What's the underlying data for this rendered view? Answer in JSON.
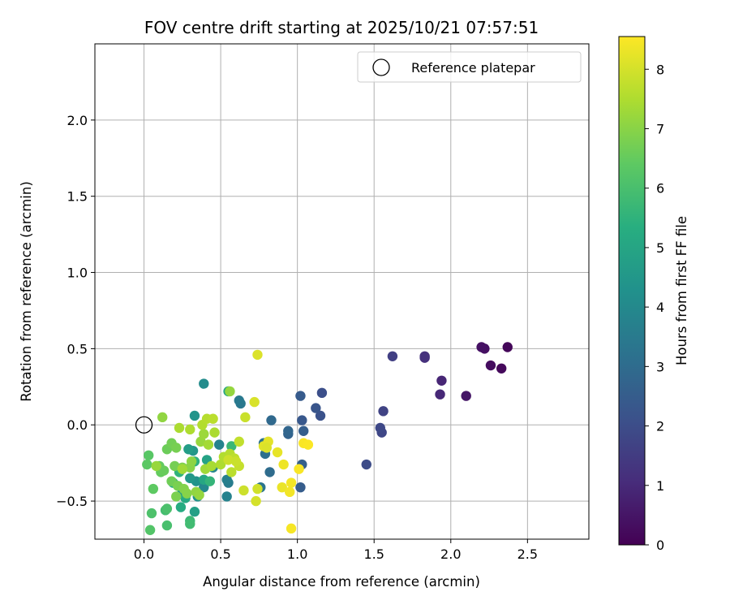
{
  "chart_data": {
    "type": "scatter",
    "title": "FOV centre drift starting at 2025/10/21 07:57:51",
    "xlabel": "Angular distance from reference (arcmin)",
    "ylabel": "Rotation from reference (arcmin)",
    "colorbar_label": "Hours from first FF file",
    "xlim": [
      -0.32,
      2.9
    ],
    "ylim": [
      -0.75,
      2.5
    ],
    "clim": [
      0,
      8.55
    ],
    "x_ticks": [
      0.0,
      0.5,
      1.0,
      1.5,
      2.0,
      2.5
    ],
    "x_tick_labels": [
      "0.0",
      "0.5",
      "1.0",
      "1.5",
      "2.0",
      "2.5"
    ],
    "y_ticks": [
      -0.5,
      0.0,
      0.5,
      1.0,
      1.5,
      2.0
    ],
    "y_tick_labels": [
      "−0.5",
      "0.0",
      "0.5",
      "1.0",
      "1.5",
      "2.0"
    ],
    "colorbar_ticks": [
      0,
      1,
      2,
      3,
      4,
      5,
      6,
      7,
      8
    ],
    "colorbar_tick_labels": [
      "0",
      "1",
      "2",
      "3",
      "4",
      "5",
      "6",
      "7",
      "8"
    ],
    "colormap": "viridis",
    "grid": true,
    "legend": {
      "placement": "top-right",
      "entries": [
        {
          "label": "Reference platepar",
          "marker": "open-circle",
          "color": "#000000"
        }
      ]
    },
    "reference_point": {
      "x": 0.0,
      "y": 0.0
    },
    "series": [
      {
        "points": [
          [
            2.37,
            0.51,
            0.15
          ],
          [
            2.33,
            0.37,
            0.2
          ],
          [
            2.26,
            0.39,
            0.3
          ],
          [
            2.22,
            0.5,
            0.35
          ],
          [
            2.2,
            0.51,
            0.4
          ],
          [
            2.1,
            0.19,
            0.5
          ],
          [
            1.94,
            0.29,
            0.9
          ],
          [
            1.93,
            0.2,
            0.95
          ],
          [
            1.83,
            0.44,
            1.15
          ],
          [
            1.83,
            0.45,
            1.2
          ],
          [
            1.62,
            0.45,
            1.6
          ],
          [
            1.56,
            0.09,
            1.7
          ],
          [
            1.55,
            -0.05,
            1.8
          ],
          [
            1.54,
            -0.02,
            1.85
          ],
          [
            1.45,
            -0.26,
            1.95
          ],
          [
            1.16,
            0.21,
            2.05
          ],
          [
            1.15,
            0.06,
            2.15
          ],
          [
            1.12,
            0.11,
            2.25
          ],
          [
            1.03,
            0.03,
            2.35
          ],
          [
            1.02,
            0.19,
            2.45
          ],
          [
            1.02,
            -0.41,
            2.5
          ],
          [
            1.03,
            -0.26,
            2.6
          ],
          [
            1.04,
            -0.04,
            2.55
          ],
          [
            0.94,
            -0.06,
            2.7
          ],
          [
            0.94,
            -0.04,
            2.8
          ],
          [
            0.83,
            0.03,
            2.9
          ],
          [
            0.82,
            -0.31,
            3.0
          ],
          [
            0.79,
            -0.19,
            3.1
          ],
          [
            0.78,
            -0.12,
            3.2
          ],
          [
            0.76,
            -0.41,
            3.3
          ],
          [
            0.63,
            0.14,
            3.4
          ],
          [
            0.62,
            0.16,
            3.45
          ],
          [
            0.55,
            -0.38,
            3.55
          ],
          [
            0.54,
            -0.36,
            3.65
          ],
          [
            0.54,
            -0.47,
            3.75
          ],
          [
            0.49,
            -0.13,
            3.8
          ],
          [
            0.45,
            -0.28,
            3.9
          ],
          [
            0.39,
            -0.41,
            4.0
          ],
          [
            0.39,
            0.27,
            4.1
          ],
          [
            0.35,
            -0.47,
            4.2
          ],
          [
            0.34,
            -0.37,
            4.35
          ],
          [
            0.33,
            0.06,
            4.4
          ],
          [
            0.32,
            -0.17,
            4.5
          ],
          [
            0.3,
            -0.35,
            4.55
          ],
          [
            0.25,
            -0.44,
            4.6
          ],
          [
            0.29,
            -0.16,
            4.7
          ],
          [
            0.33,
            -0.57,
            4.8
          ],
          [
            0.41,
            -0.23,
            4.9
          ],
          [
            0.55,
            0.22,
            5.0
          ],
          [
            0.39,
            -0.36,
            5.05
          ],
          [
            0.27,
            -0.48,
            5.15
          ],
          [
            0.24,
            -0.54,
            5.25
          ],
          [
            0.19,
            -0.38,
            5.35
          ],
          [
            0.33,
            -0.24,
            5.45
          ],
          [
            0.23,
            -0.31,
            5.5
          ],
          [
            0.43,
            -0.37,
            5.6
          ],
          [
            0.57,
            -0.14,
            5.7
          ],
          [
            0.3,
            -0.63,
            5.75
          ],
          [
            0.3,
            -0.65,
            5.85
          ],
          [
            0.14,
            -0.56,
            5.9
          ],
          [
            0.15,
            -0.66,
            6.0
          ],
          [
            0.15,
            -0.55,
            6.05
          ],
          [
            0.05,
            -0.58,
            6.1
          ],
          [
            0.04,
            -0.69,
            6.2
          ],
          [
            0.03,
            -0.2,
            6.3
          ],
          [
            0.02,
            -0.26,
            6.35
          ],
          [
            0.06,
            -0.42,
            6.4
          ],
          [
            0.1,
            -0.27,
            6.45
          ],
          [
            0.11,
            -0.31,
            6.5
          ],
          [
            0.13,
            -0.3,
            6.55
          ],
          [
            0.15,
            -0.16,
            6.6
          ],
          [
            0.18,
            -0.37,
            6.65
          ],
          [
            0.18,
            -0.12,
            6.7
          ],
          [
            0.2,
            -0.27,
            6.72
          ],
          [
            0.21,
            -0.15,
            6.75
          ],
          [
            0.22,
            -0.4,
            6.78
          ],
          [
            0.21,
            -0.47,
            6.8
          ],
          [
            0.25,
            -0.28,
            6.85
          ],
          [
            0.26,
            -0.42,
            6.9
          ],
          [
            0.28,
            -0.45,
            6.95
          ],
          [
            0.3,
            -0.28,
            7.0
          ],
          [
            0.31,
            -0.24,
            7.05
          ],
          [
            0.34,
            -0.44,
            7.1
          ],
          [
            0.36,
            -0.46,
            7.15
          ],
          [
            0.37,
            -0.11,
            7.2
          ],
          [
            0.39,
            -0.06,
            7.25
          ],
          [
            0.4,
            -0.29,
            7.3
          ],
          [
            0.42,
            -0.13,
            7.35
          ],
          [
            0.44,
            -0.27,
            7.4
          ],
          [
            0.46,
            -0.05,
            7.45
          ],
          [
            0.5,
            -0.26,
            7.5
          ],
          [
            0.52,
            -0.21,
            7.55
          ],
          [
            0.56,
            -0.19,
            7.6
          ],
          [
            0.57,
            -0.31,
            7.65
          ],
          [
            0.59,
            -0.22,
            7.7
          ],
          [
            0.62,
            -0.11,
            7.75
          ],
          [
            0.62,
            -0.27,
            7.8
          ],
          [
            0.66,
            0.05,
            7.85
          ],
          [
            0.65,
            -0.43,
            7.9
          ],
          [
            0.25,
            -0.29,
            7.3
          ],
          [
            0.23,
            -0.02,
            7.45
          ],
          [
            0.3,
            -0.03,
            7.5
          ],
          [
            0.38,
            0.0,
            7.55
          ],
          [
            0.41,
            0.04,
            7.6
          ],
          [
            0.45,
            0.04,
            7.65
          ],
          [
            0.56,
            0.22,
            7.15
          ],
          [
            0.12,
            0.05,
            7.1
          ],
          [
            0.08,
            -0.27,
            7.2
          ],
          [
            0.74,
            -0.42,
            7.95
          ],
          [
            0.73,
            -0.5,
            8.0
          ],
          [
            0.72,
            0.15,
            8.05
          ],
          [
            0.74,
            0.46,
            8.1
          ],
          [
            0.78,
            -0.14,
            8.15
          ],
          [
            0.81,
            -0.11,
            8.2
          ],
          [
            0.87,
            -0.18,
            8.25
          ],
          [
            0.9,
            -0.41,
            8.3
          ],
          [
            0.91,
            -0.26,
            8.35
          ],
          [
            0.95,
            -0.44,
            8.4
          ],
          [
            0.96,
            -0.38,
            8.42
          ],
          [
            0.96,
            -0.68,
            8.45
          ],
          [
            1.01,
            -0.29,
            8.48
          ],
          [
            1.04,
            -0.12,
            8.5
          ],
          [
            1.07,
            -0.13,
            8.52
          ],
          [
            0.55,
            -0.23,
            7.9
          ],
          [
            0.6,
            -0.24,
            7.85
          ],
          [
            0.8,
            -0.15,
            8.1
          ]
        ]
      }
    ]
  }
}
